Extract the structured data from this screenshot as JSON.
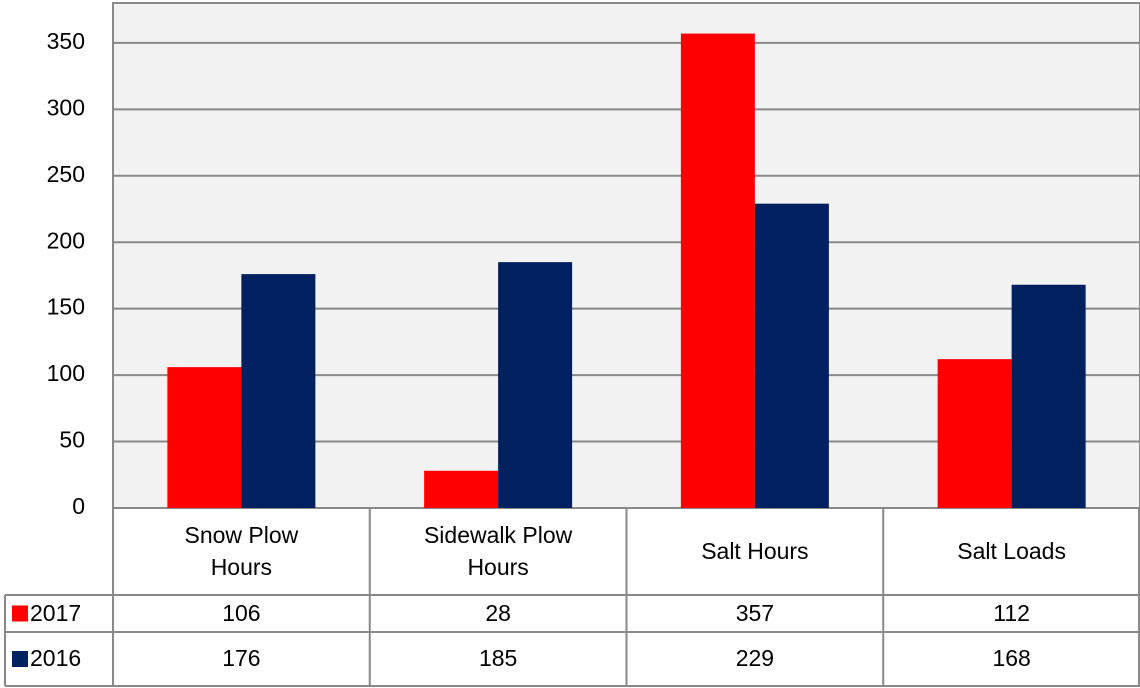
{
  "chart_data": {
    "type": "bar",
    "categories": [
      "Snow Plow Hours",
      "Sidewalk Plow Hours",
      "Salt Hours",
      "Salt Loads"
    ],
    "series": [
      {
        "name": "2017",
        "color": "#ff0000",
        "values": [
          106,
          28,
          357,
          112
        ]
      },
      {
        "name": "2016",
        "color": "#002060",
        "values": [
          176,
          185,
          229,
          168
        ]
      }
    ],
    "ylim": [
      0,
      380
    ],
    "yticks": [
      0,
      50,
      100,
      150,
      200,
      250,
      300,
      350
    ],
    "grid": true,
    "data_table": true
  }
}
